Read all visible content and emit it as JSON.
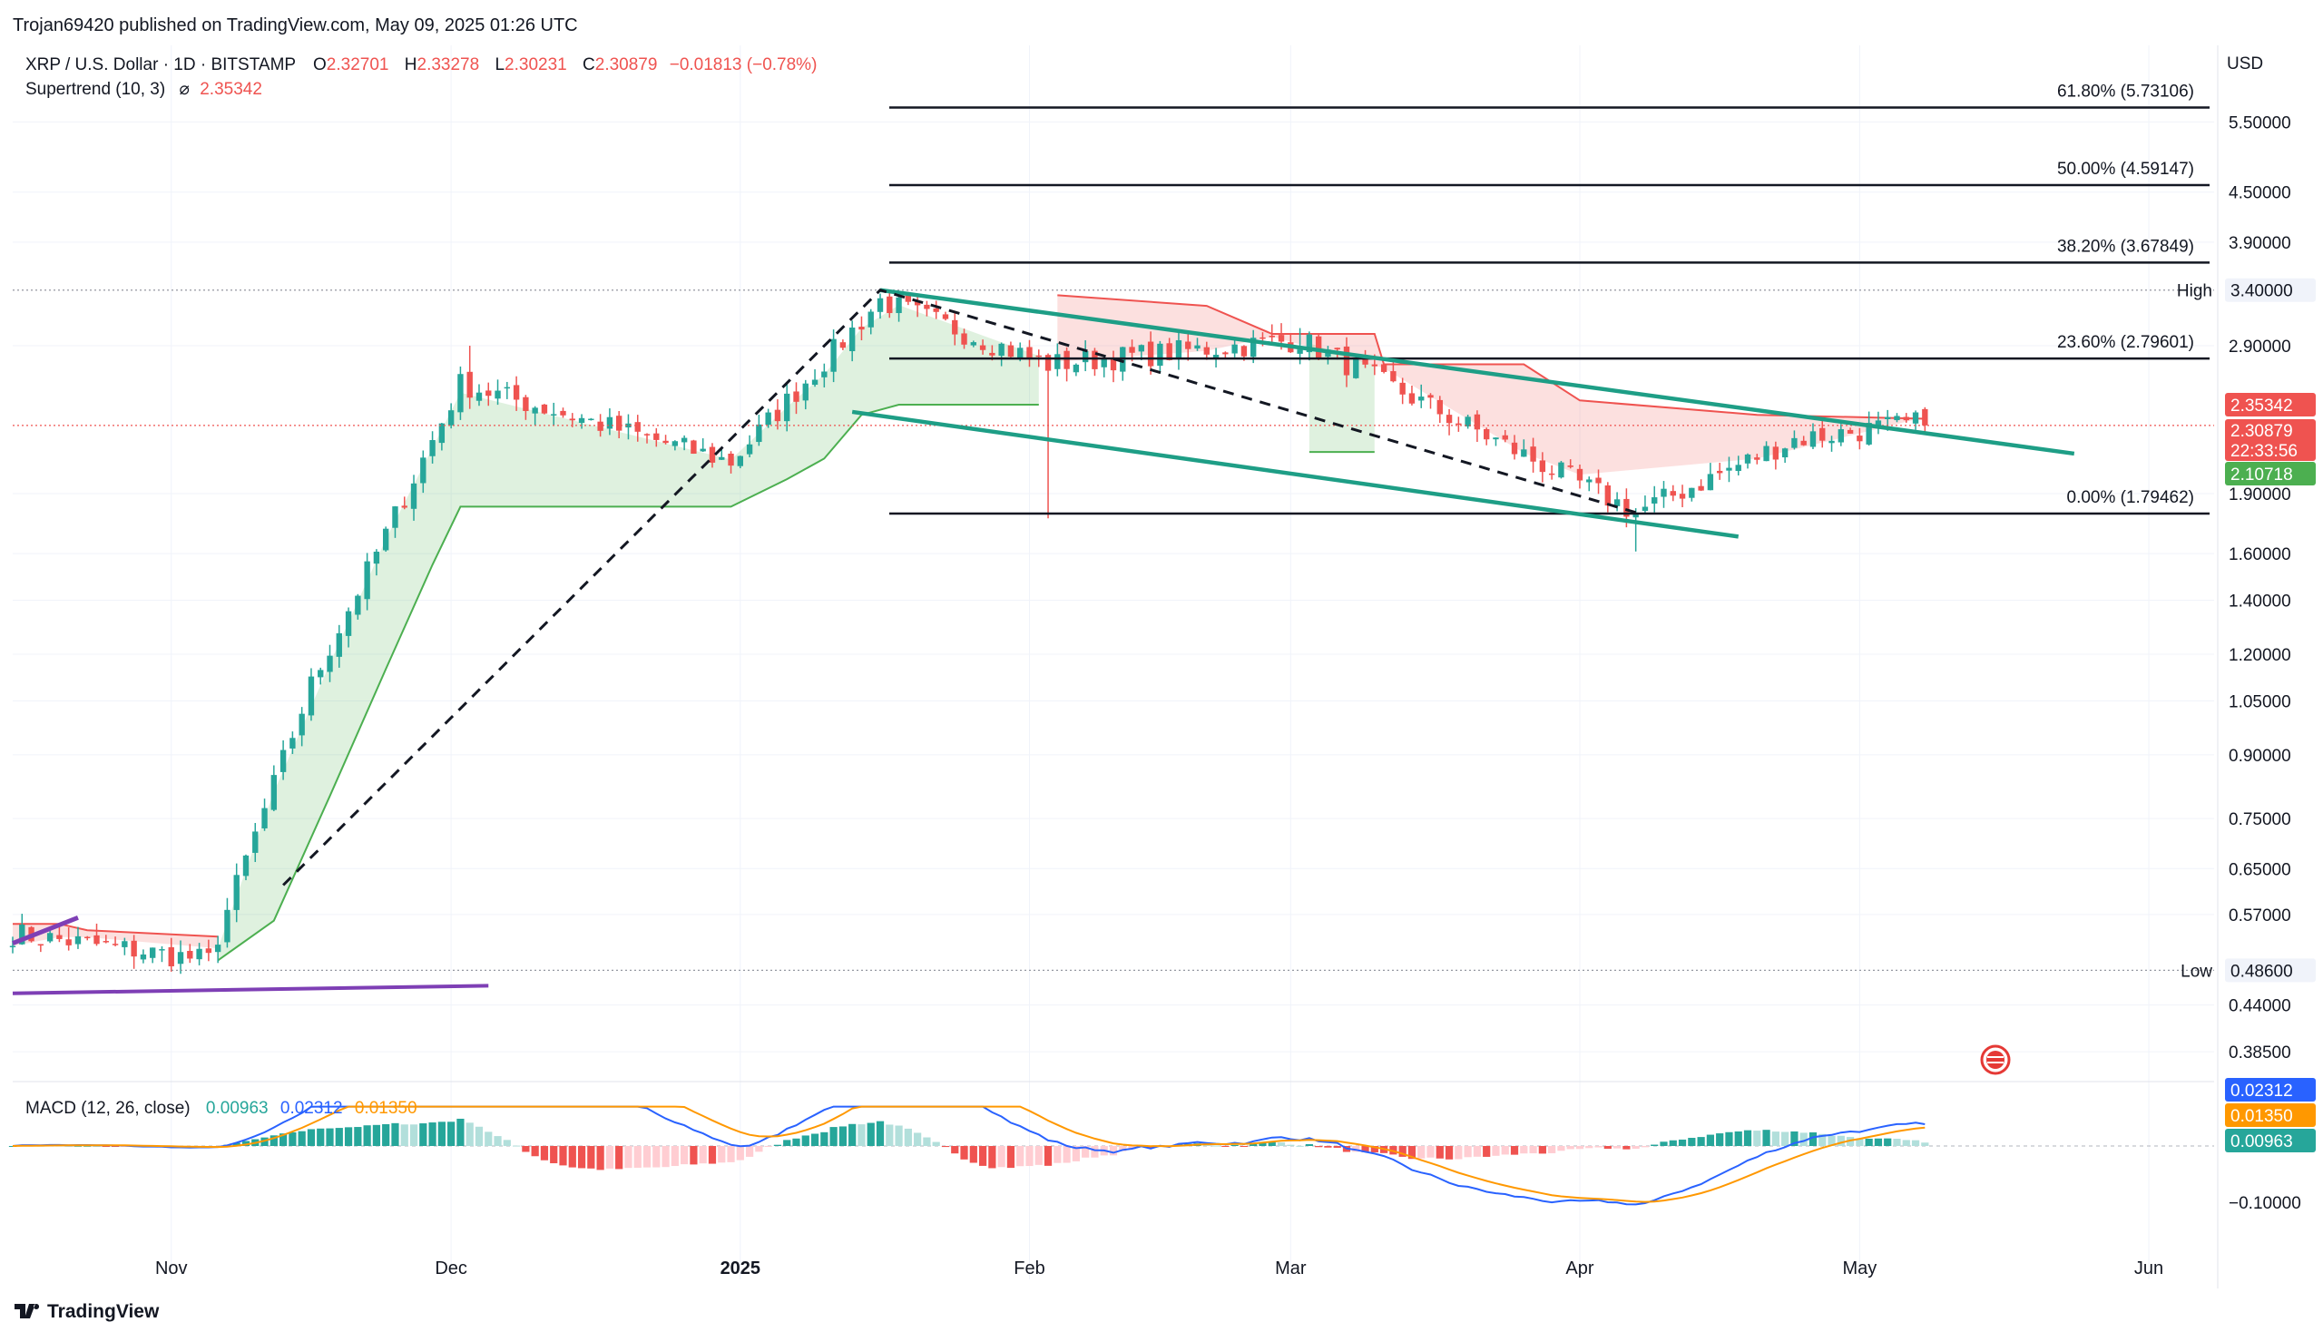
{
  "header": {
    "published": "Trojan69420 published on TradingView.com, May 09, 2025 01:26 UTC",
    "symbol": "XRP / U.S. Dollar · 1D · BITSTAMP",
    "o_label": "O",
    "o_value": "2.32701",
    "h_label": "H",
    "h_value": "2.33278",
    "l_label": "L",
    "l_value": "2.30231",
    "c_label": "C",
    "c_value": "2.30879",
    "change": "−0.01813 (−0.78%)",
    "indicator_name": "Supertrend (10, 3)",
    "indicator_symbol": "⌀",
    "indicator_value": "2.35342"
  },
  "axis": {
    "currency": "USD",
    "price_ticks": [
      "5.50000",
      "4.50000",
      "3.90000",
      "2.90000",
      "1.90000",
      "1.60000",
      "1.40000",
      "1.20000",
      "1.05000",
      "0.90000",
      "0.75000",
      "0.65000",
      "0.57000",
      "0.44000",
      "0.38500"
    ],
    "time_ticks": [
      "Nov",
      "Dec",
      "2025",
      "Feb",
      "Mar",
      "Apr",
      "May",
      "Jun"
    ],
    "macd_ticks": [
      "−0.10000"
    ]
  },
  "markers": {
    "high_label": "High",
    "high_value": "3.40000",
    "low_label": "Low",
    "low_value": "0.48600"
  },
  "badges": {
    "supertrend": "2.35342",
    "price": "2.30879",
    "countdown": "22:33:56",
    "support": "2.10718",
    "macd_signal": "0.02312",
    "macd_line": "0.01350",
    "macd_hist": "0.00963"
  },
  "macd": {
    "label": "MACD (12, 26, close)",
    "v1": "0.00963",
    "v2": "0.02312",
    "v3": "0.01350"
  },
  "footer": {
    "brand": "TradingView"
  },
  "colors": {
    "up": "#26a69a",
    "down": "#ef5350",
    "uptrend": "#4caf50",
    "downtrend": "#ef5350",
    "channel": "#1e9e86",
    "purple": "#7e3fb5",
    "signal": "#2962ff",
    "orange": "#ff9800"
  },
  "chart_data": {
    "type": "candlestick",
    "title": "XRP / U.S. Dollar · 1D · BITSTAMP",
    "y_scale": "log",
    "ylim": [
      0.36,
      6.5
    ],
    "x_range": [
      "2024-10-15",
      "2025-06-08"
    ],
    "last_price": 2.30879,
    "fibonacci": [
      {
        "label": "61.80% (5.73106)",
        "ratio": 0.618,
        "price": 5.73106
      },
      {
        "label": "50.00% (4.59147)",
        "ratio": 0.5,
        "price": 4.59147
      },
      {
        "label": "38.20% (3.67849)",
        "ratio": 0.382,
        "price": 3.67849
      },
      {
        "label": "23.60% (2.79601)",
        "ratio": 0.236,
        "price": 2.79601
      },
      {
        "label": "0.00% (1.79462)",
        "ratio": 0.0,
        "price": 1.79462
      }
    ],
    "high": 3.4,
    "low": 0.486,
    "channel_upper": [
      [
        "2025-01-16",
        3.4
      ],
      [
        "2025-05-24",
        2.13
      ]
    ],
    "channel_lower": [
      [
        "2025-01-13",
        2.4
      ],
      [
        "2025-04-18",
        1.68
      ]
    ],
    "dashed_trend": [
      [
        "2024-11-13",
        0.62
      ],
      [
        "2025-01-16",
        3.4
      ],
      [
        "2025-04-07",
        1.8
      ]
    ],
    "milestones": [
      {
        "date": "2024-10-15",
        "close": 0.54
      },
      {
        "date": "2024-11-05",
        "close": 0.5
      },
      {
        "date": "2024-11-16",
        "close": 1.1
      },
      {
        "date": "2024-12-02",
        "close": 2.6
      },
      {
        "date": "2024-12-31",
        "close": 2.08
      },
      {
        "date": "2025-01-16",
        "close": 3.3
      },
      {
        "date": "2025-02-03",
        "close": 2.75
      },
      {
        "date": "2025-03-02",
        "close": 2.95
      },
      {
        "date": "2025-04-07",
        "close": 1.8
      },
      {
        "date": "2025-04-24",
        "close": 2.22
      },
      {
        "date": "2025-05-08",
        "close": 2.33
      }
    ]
  }
}
